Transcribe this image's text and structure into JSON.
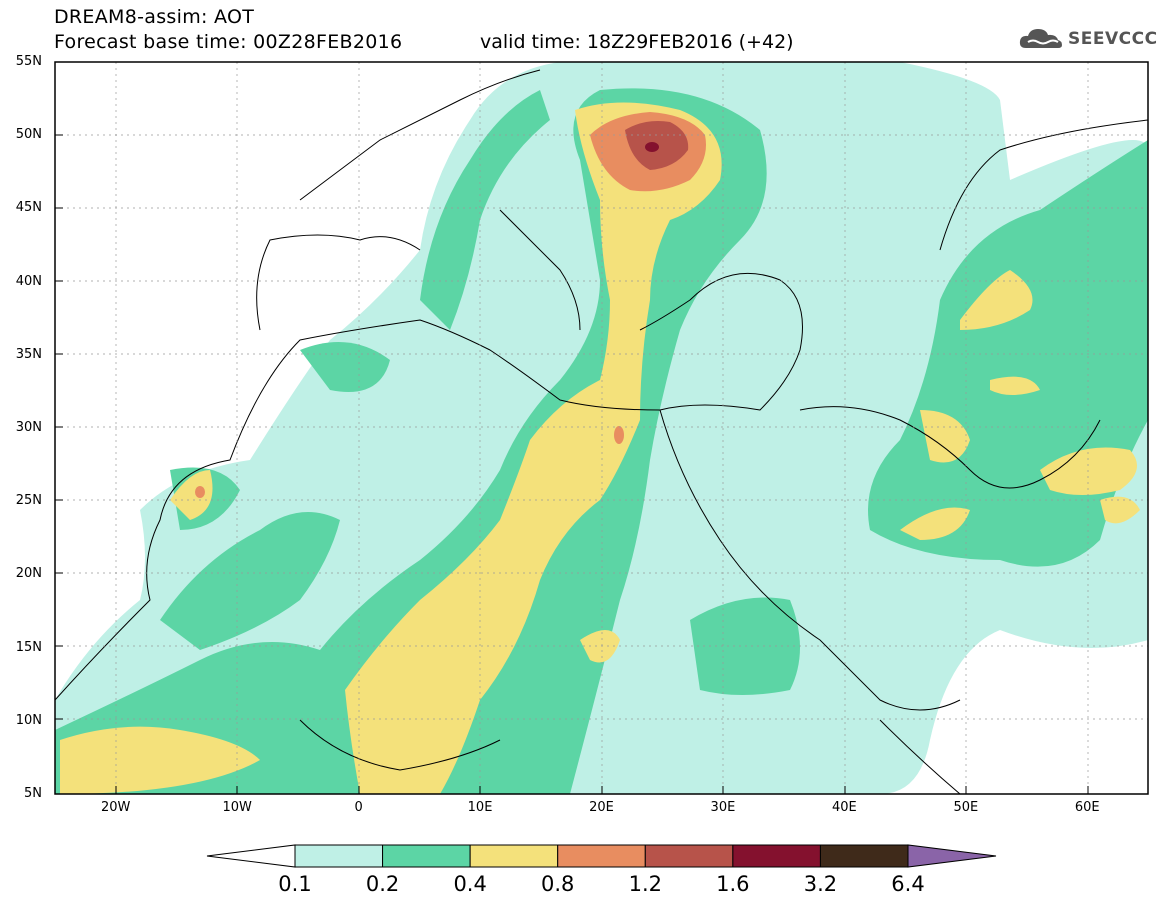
{
  "header": {
    "title_line1": "DREAM8-assim: AOT",
    "title_line2": "Forecast base time: 00Z28FEB2016",
    "valid_time": "valid time: 18Z29FEB2016 (+42)",
    "logo_text": "SEEVCCC"
  },
  "axes": {
    "lat_labels": [
      "55N",
      "50N",
      "45N",
      "40N",
      "35N",
      "30N",
      "25N",
      "20N",
      "15N",
      "10N",
      "5N"
    ],
    "lon_labels": [
      "20W",
      "10W",
      "0",
      "10E",
      "20E",
      "30E",
      "40E",
      "50E",
      "60E"
    ],
    "lon_range": [
      -25,
      65
    ],
    "lat_range": [
      5,
      55
    ]
  },
  "legend": {
    "colors": [
      "#bff0e6",
      "#5cd5a5",
      "#f4e17b",
      "#e88d60",
      "#b7534a",
      "#84112e",
      "#3f2a1a"
    ],
    "labels": [
      "0.1",
      "0.2",
      "0.4",
      "0.8",
      "1.2",
      "1.6",
      "3.2",
      "6.4"
    ],
    "under_color": "#ffffff",
    "over_color": "#8a64a8"
  }
}
